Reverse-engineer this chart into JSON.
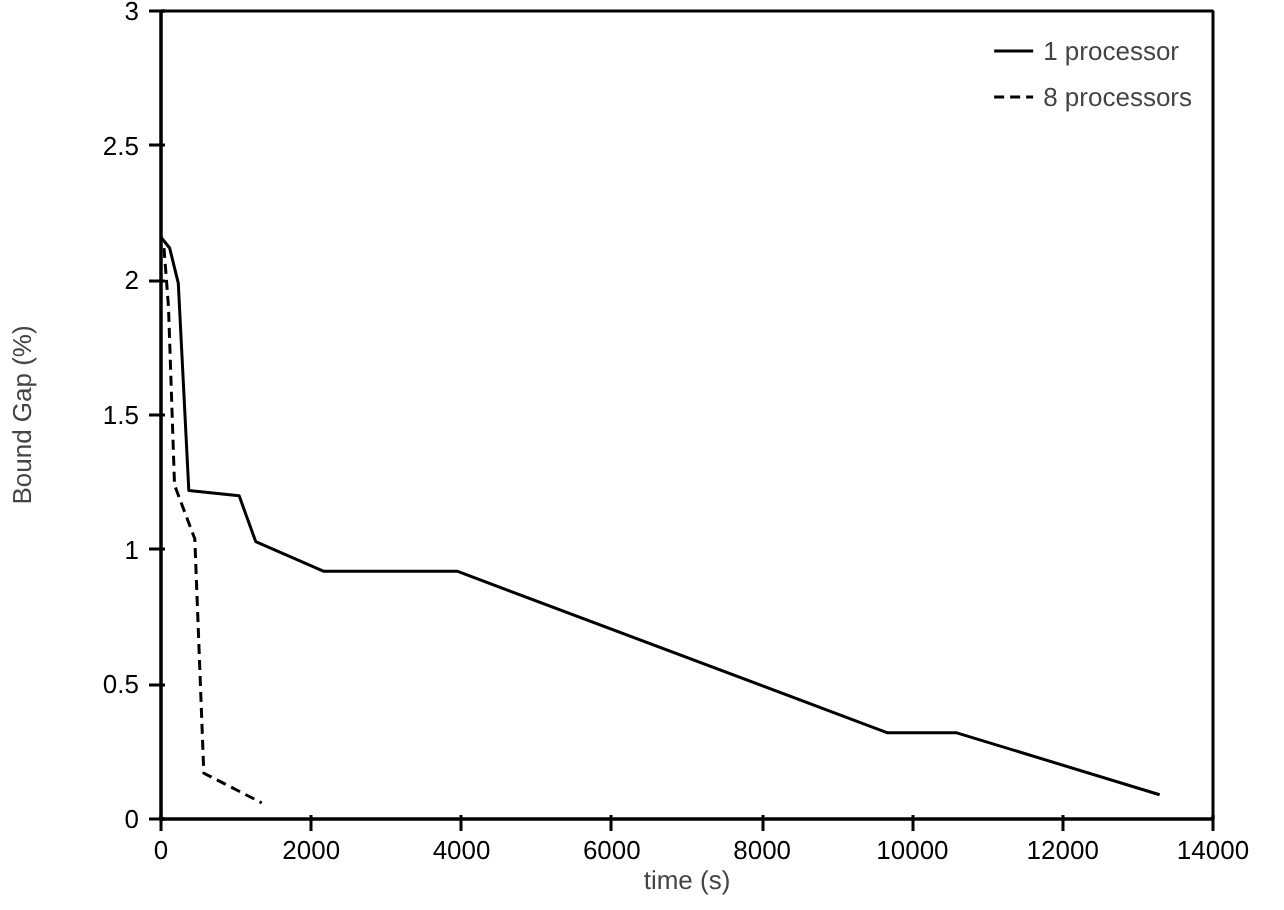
{
  "chart_data": {
    "type": "line",
    "xlabel": "time (s)",
    "ylabel": "Bound Gap (%)",
    "xlim": [
      0,
      14000
    ],
    "ylim": [
      0,
      3
    ],
    "xticks": [
      0,
      2000,
      4000,
      6000,
      8000,
      10000,
      12000,
      14000
    ],
    "yticks": [
      0,
      0.5,
      1,
      1.5,
      2,
      2.5,
      3
    ],
    "legend": "top right",
    "grid": false,
    "series": [
      {
        "name": "1 processor",
        "color": "#000000",
        "line_style": "solid",
        "x": [
          0,
          115,
          230,
          370,
          1040,
          1260,
          2160,
          3940,
          9670,
          10590,
          13290
        ],
        "values": [
          2.16,
          2.12,
          1.99,
          1.22,
          1.2,
          1.03,
          0.92,
          0.92,
          0.32,
          0.32,
          0.09
        ]
      },
      {
        "name": "8 processors",
        "color": "#000000",
        "line_style": "dashed",
        "x": [
          40,
          100,
          180,
          450,
          570,
          1340
        ],
        "values": [
          2.12,
          1.9,
          1.24,
          1.04,
          0.17,
          0.06
        ]
      }
    ]
  }
}
